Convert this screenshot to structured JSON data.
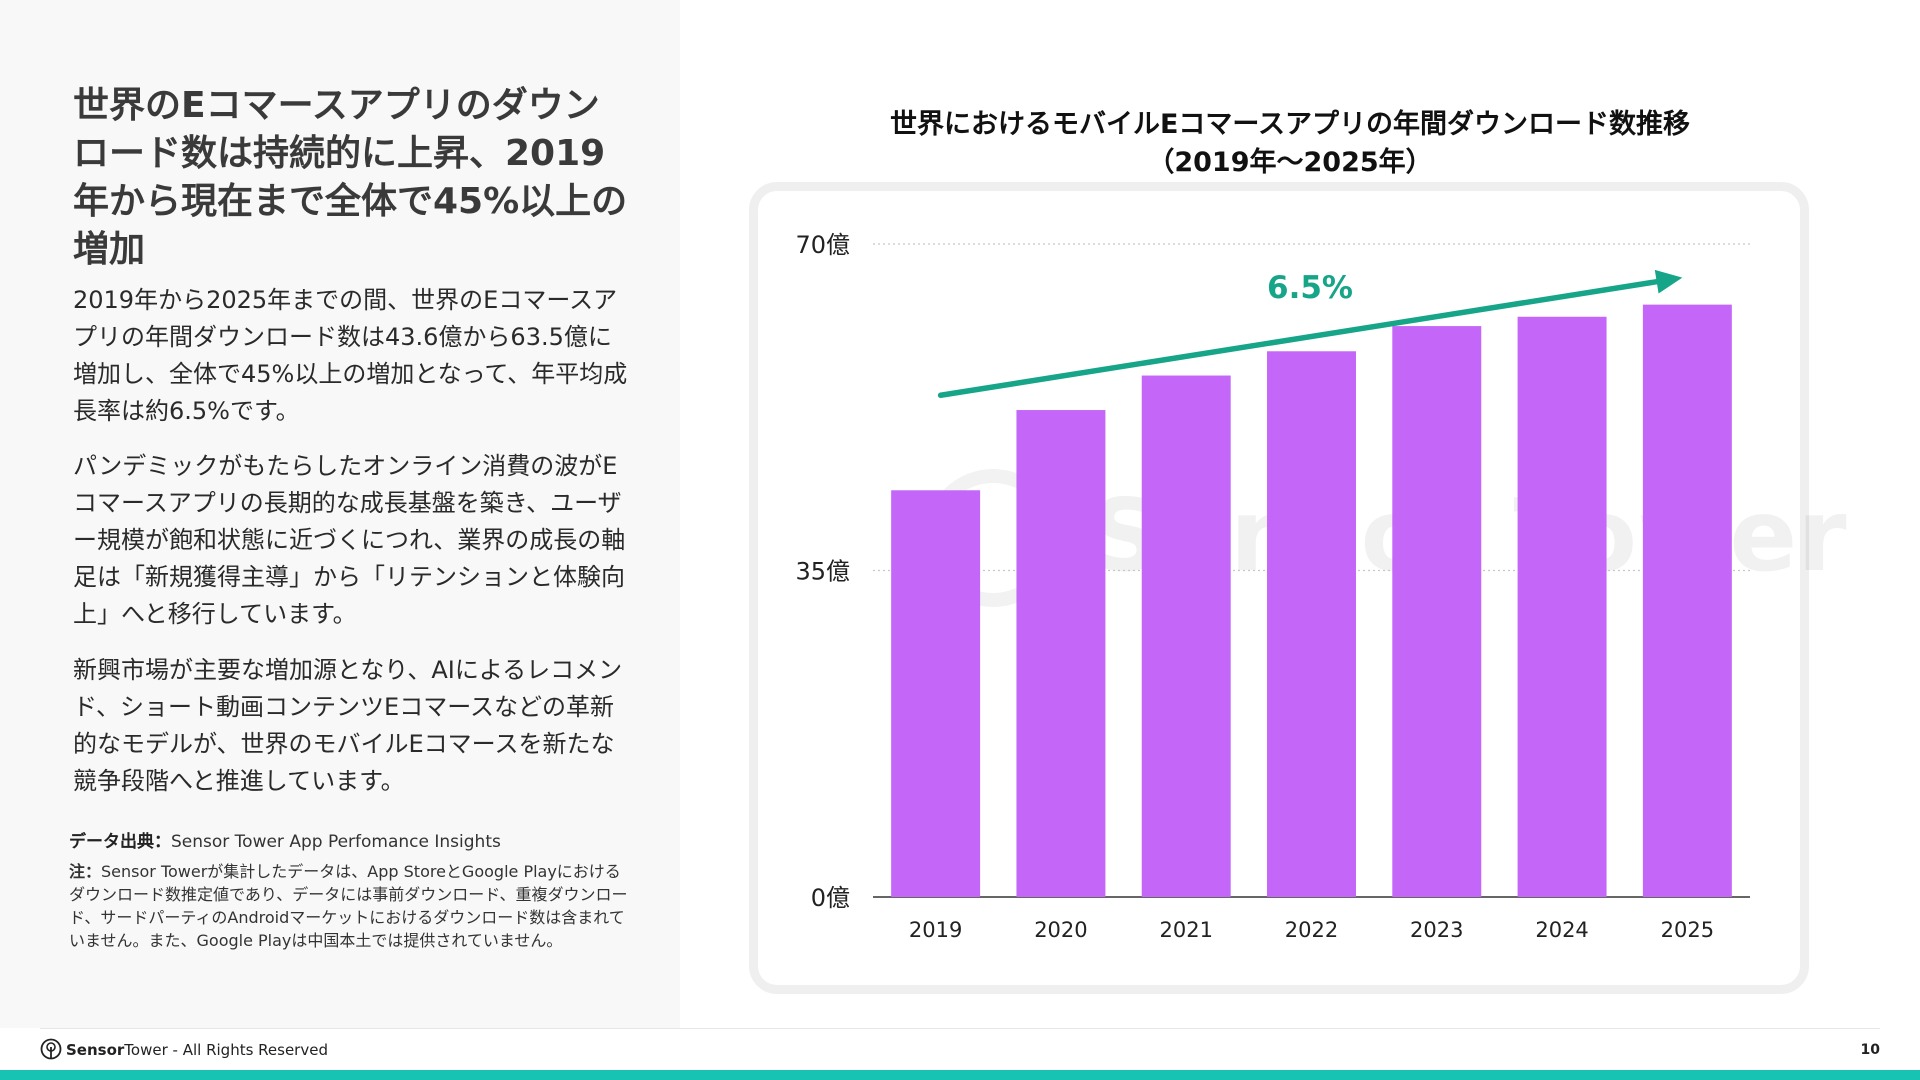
{
  "left": {
    "headline": "世界のEコマースアプリのダウンロード数は持続的に上昇、2019年から現在まで全体で45%以上の増加",
    "paragraphs": [
      "2019年から2025年までの間、世界のEコマースアプリの年間ダウンロード数は43.6億から63.5億に増加し、全体で45%以上の増加となって、年平均成長率は約6.5%です。",
      "パンデミックがもたらしたオンライン消費の波がEコマースアプリの長期的な成長基盤を築き、ユーザー規模が飽和状態に近づくにつれ、業界の成長の軸足は「新規獲得主導」から「リテンションと体験向上」へと移行しています。",
      "新興市場が主要な増加源となり、AIによるレコメンド、ショート動画コンテンツEコマースなどの革新的なモデルが、世界のモバイルEコマースを新たな競争段階へと推進しています。"
    ],
    "source_label": "データ出典：",
    "source_value": "Sensor Tower App Perfomance Insights",
    "note_label": "注：",
    "note_text": "Sensor Towerが集計したデータは、App StoreとGoogle Playにおけるダウンロード数推定値であり、データには事前ダウンロード、重複ダウンロード、サードパーティのAndroidマーケットにおけるダウンロード数は含まれていません。また、Google Playは中国本土では提供されていません。"
  },
  "chart_data": {
    "type": "bar",
    "title_line1": "世界におけるモバイルEコマースアプリの年間ダウンロード数推移",
    "title_line2": "（2019年～2025年）",
    "categories": [
      "2019",
      "2020",
      "2021",
      "2022",
      "2023",
      "2024",
      "2025"
    ],
    "values": [
      43.6,
      52.2,
      55.9,
      58.5,
      61.2,
      62.2,
      63.5
    ],
    "unit": "億",
    "ylim": [
      0,
      70
    ],
    "yticks": [
      0,
      35,
      70
    ],
    "ytick_labels": [
      "0億",
      "35億",
      "70億"
    ],
    "grid": true,
    "bar_color": "#c466f7",
    "trend_color": "#17a589",
    "annotation": "6.5%",
    "watermark": "Sensor Tower"
  },
  "footer": {
    "brand_sensor": "Sensor",
    "brand_tower": "Tower",
    "rights": " - All Rights Reserved",
    "page_number": "10",
    "accent_color": "#17c3b2"
  }
}
